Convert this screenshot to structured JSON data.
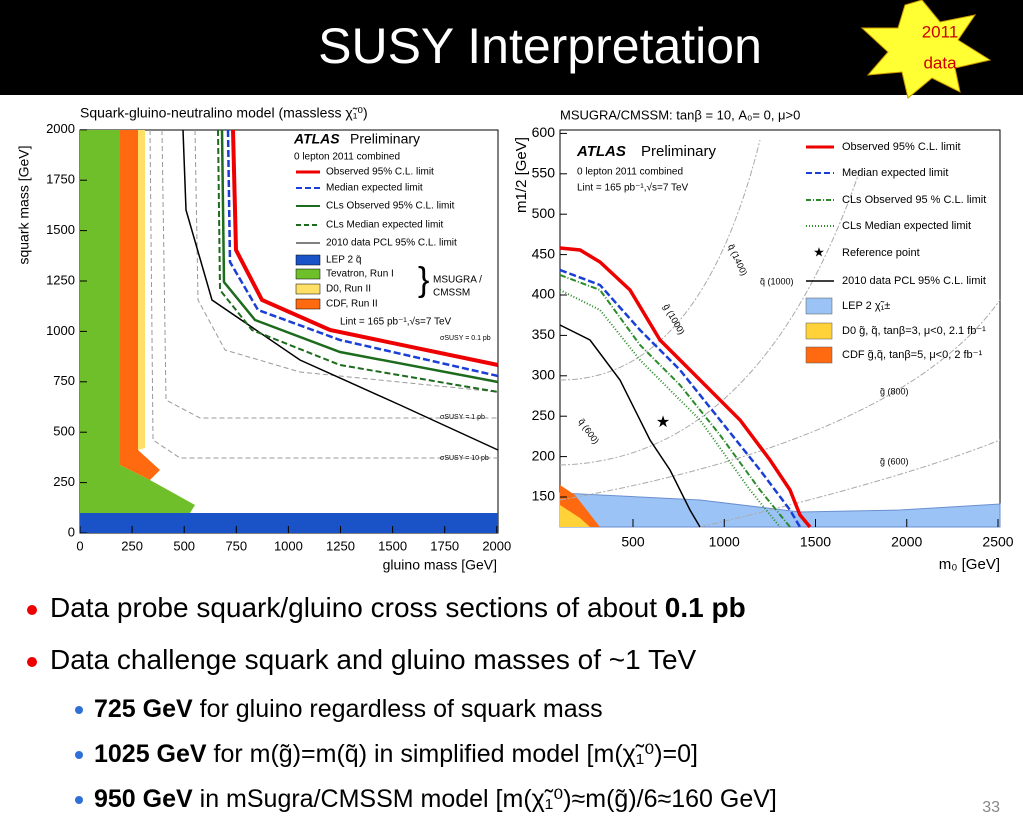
{
  "header": {
    "title": "SUSY Interpretation",
    "badge": [
      "2011",
      "data"
    ]
  },
  "left_plot": {
    "title": "Squark-gluino-neutralino model (massless χ̃₁⁰)",
    "y_label": "squark mass [GeV]",
    "x_label": "gluino mass [GeV]",
    "yticks": [
      "0",
      "250",
      "500",
      "750",
      "1000",
      "1250",
      "1500",
      "1750",
      "2000"
    ],
    "xticks": [
      "0",
      "250",
      "500",
      "750",
      "1000",
      "1250",
      "1500",
      "1750",
      "2000"
    ],
    "brand": "ATLAS",
    "brand_suffix": "Preliminary",
    "subtitle": "0 lepton 2011 combined",
    "legend": [
      "Observed 95% C.L. limit",
      "Median expected limit",
      "CLs Observed 95% C.L. limit",
      "CLs Median expected limit",
      "2010 data PCL 95% C.L. limit",
      "LEP 2 q̃",
      "Tevatron, Run I",
      "D0, Run II",
      "CDF, Run II"
    ],
    "brace_label": [
      "MSUGRA /",
      "CMSSM"
    ],
    "lumi": "Lint = 165 pb⁻¹,√s=7 TeV",
    "xsec_labels": [
      "σSUSY = 0.1 pb",
      "σSUSY = 1 pb",
      "σSUSY = 10 pb"
    ]
  },
  "right_plot": {
    "title": "MSUGRA/CMSSM: tanβ = 10, A₀= 0, μ>0",
    "y_label": "m1/2 [GeV]",
    "x_label": "m₀ [GeV]",
    "yticks": [
      "150",
      "200",
      "250",
      "300",
      "350",
      "400",
      "450",
      "500",
      "550",
      "600"
    ],
    "xticks": [
      "500",
      "1000",
      "1500",
      "2000",
      "2500"
    ],
    "brand": "ATLAS",
    "brand_suffix": "Preliminary",
    "subtitle": "0 lepton 2011 combined",
    "lumi": "Lint = 165 pb⁻¹,√s=7 TeV",
    "legend": [
      "Observed 95% C.L. limit",
      "Median expected limit",
      "CLs Observed 95 % C.L. limit",
      "CLs Median expected limit",
      "Reference point",
      "2010 data PCL 95% C.L. limit",
      "LEP 2 χ̃₁±",
      "D0 g̃, q̃, tanβ=3, μ<0, 2.1 fb⁻¹",
      "CDF g̃,q̃, tanβ=5, μ<0, 2 fb⁻¹"
    ],
    "contour_labels": [
      "q̃ (1400)",
      "g̃ (1000)",
      "q̃ (1000)",
      "g̃ (800)",
      "q̃ (600)",
      "g̃ (600)"
    ]
  },
  "bullets": [
    {
      "text": "Data probe squark/gluino cross sections of about ",
      "bold": "0.1 pb"
    },
    {
      "text": "Data challenge squark and gluino masses of ~1 TeV"
    }
  ],
  "sub_bullets": [
    {
      "bold": "725 GeV",
      "text": " for gluino regardless of squark mass"
    },
    {
      "bold": "1025 GeV",
      "text": " for m(g̃)=m(q̃) in simplified model [m(χ̃₁⁰)=0]"
    },
    {
      "bold": "950 GeV",
      "text": " in mSugra/CMSSM model [m(χ̃₁⁰)≈m(g̃)/6≈160 GeV]"
    }
  ],
  "page_number": "33"
}
